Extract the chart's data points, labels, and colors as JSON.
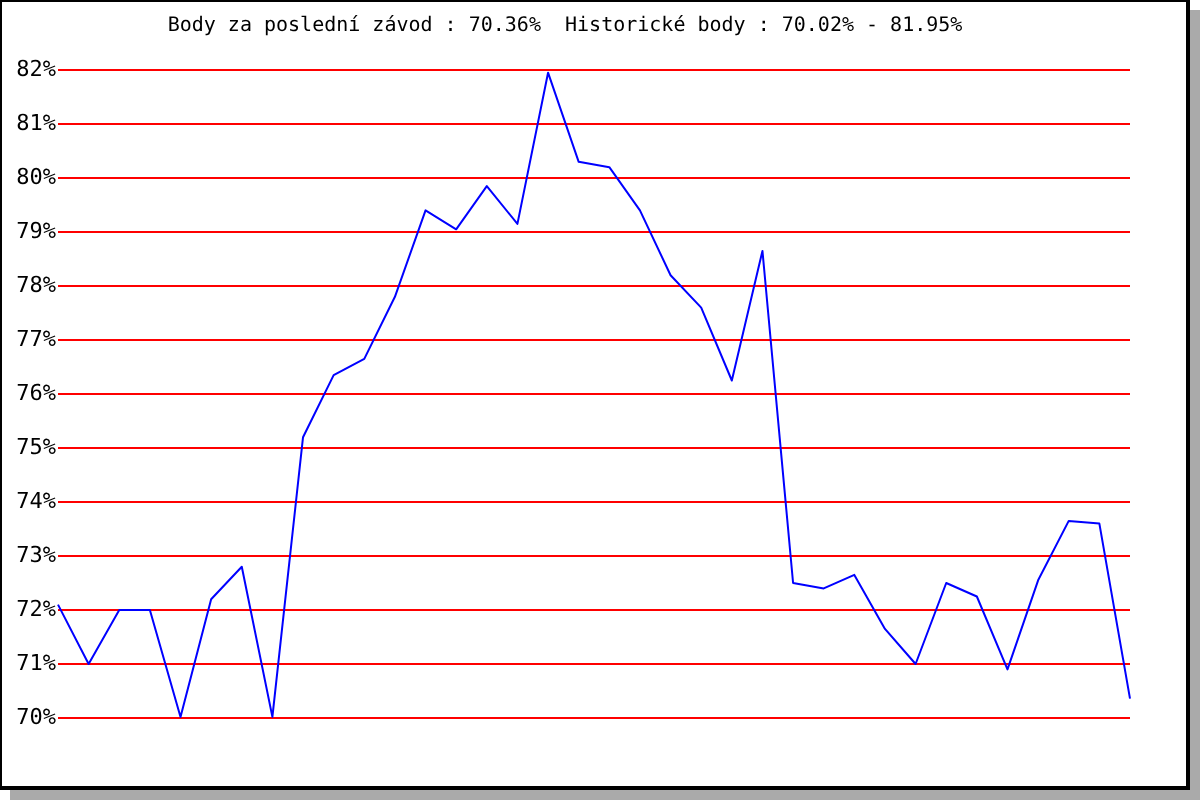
{
  "chart_data": {
    "type": "line",
    "title": "Body za poslední závod : 70.36%  Historické body : 70.02% - 81.95%",
    "categories": [
      null,
      null,
      null,
      null,
      null,
      null,
      null,
      null,
      null,
      null,
      null,
      null,
      null,
      null,
      null,
      null,
      null,
      null,
      null,
      null,
      null,
      null,
      null,
      null,
      null,
      null,
      null,
      null,
      null,
      null,
      null,
      null,
      null,
      null,
      null,
      null
    ],
    "color": "#0000ff",
    "values": [
      72.1,
      71.0,
      72.0,
      72.0,
      70.02,
      72.2,
      72.8,
      70.02,
      75.2,
      76.35,
      76.65,
      77.8,
      79.4,
      79.05,
      79.85,
      79.15,
      81.95,
      80.3,
      80.2,
      79.4,
      78.2,
      77.6,
      76.25,
      78.65,
      72.5,
      72.4,
      72.65,
      71.65,
      71.0,
      72.5,
      72.25,
      70.9,
      72.55,
      73.65,
      73.6,
      70.36
    ],
    "ylim": [
      70,
      82
    ],
    "yticks": [
      {
        "value": 70,
        "label": "70%"
      },
      {
        "value": 71,
        "label": "71%"
      },
      {
        "value": 72,
        "label": "72%"
      },
      {
        "value": 73,
        "label": "73%"
      },
      {
        "value": 74,
        "label": "74%"
      },
      {
        "value": 75,
        "label": "75%"
      },
      {
        "value": 76,
        "label": "76%"
      },
      {
        "value": 77,
        "label": "77%"
      },
      {
        "value": 78,
        "label": "78%"
      },
      {
        "value": 79,
        "label": "79%"
      },
      {
        "value": 80,
        "label": "80%"
      },
      {
        "value": 81,
        "label": "81%"
      },
      {
        "value": 82,
        "label": "82%"
      }
    ],
    "grid": "y",
    "tick_labels": "y"
  }
}
